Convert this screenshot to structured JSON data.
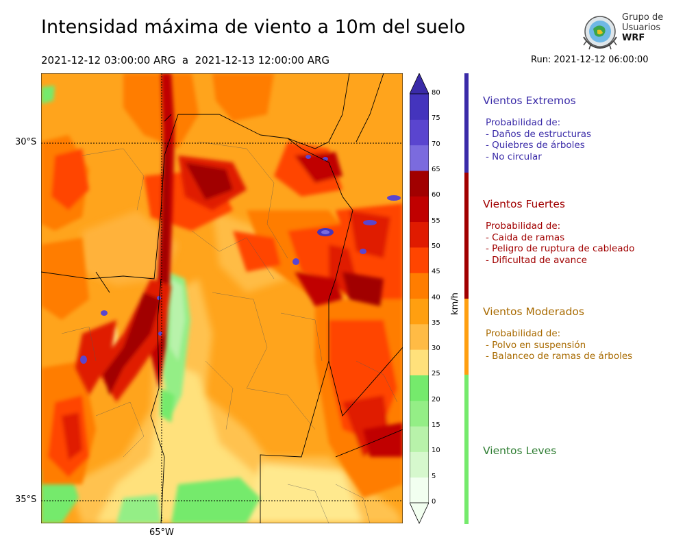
{
  "title": "Intensidad máxima de viento a 10m del suelo",
  "period": "2021-12-12 03:00:00 ARG  a  2021-12-13 12:00:00 ARG",
  "run": "Run: 2021-12-12 06:00:00",
  "logo": {
    "line1": "Grupo de",
    "line2": "Usuarios",
    "line3": "WRF"
  },
  "map": {
    "lat_labels": [
      "30°S",
      "35°S"
    ],
    "lon_labels": [
      "65°W"
    ]
  },
  "colorbar": {
    "unit": "km/h",
    "ticks": [
      "0",
      "5",
      "10",
      "15",
      "20",
      "25",
      "30",
      "35",
      "40",
      "45",
      "50",
      "55",
      "60",
      "65",
      "70",
      "75",
      "80"
    ],
    "colors": [
      "#f2fff0",
      "#d6f8cd",
      "#b8f2aa",
      "#94ee86",
      "#75ea6c",
      "#ffe17b",
      "#ffbb45",
      "#ff9f10",
      "#ff7d00",
      "#ff4500",
      "#e01b00",
      "#c00000",
      "#a10000",
      "#7b6bde",
      "#5a45cf",
      "#4434bd",
      "#3a2ba8"
    ]
  },
  "categories": [
    {
      "title": "Vientos Extremos",
      "color": "#3a2ba8",
      "heading": "Probabilidad de:",
      "items": [
        "- Daños de estructuras",
        "- Quiebres de árboles",
        "- No circular"
      ]
    },
    {
      "title": "Vientos Fuertes",
      "color": "#a10000",
      "heading": "Probabilidad de:",
      "items": [
        "- Caida de ramas",
        "- Peligro de ruptura de cableado",
        "- Dificultad de avance"
      ]
    },
    {
      "title": "Vientos Moderados",
      "color": "#a86a00",
      "heading": "Probabilidad de:",
      "items": [
        "- Polvo en suspensión",
        "- Balanceo de ramas de árboles"
      ]
    },
    {
      "title": "Vientos Leves",
      "color": "#2e7d32",
      "heading": "",
      "items": []
    }
  ],
  "legend_bar_colors": [
    "#3a2ba8",
    "#a10000",
    "#ff9f10",
    "#75ea6c"
  ]
}
